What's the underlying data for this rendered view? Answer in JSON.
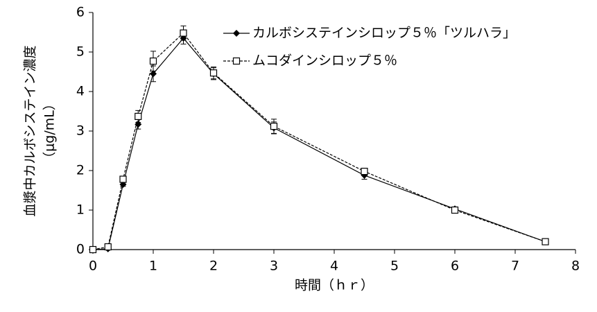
{
  "chart_data": {
    "type": "line",
    "y_label": [
      "血漿中カルボシステイン濃度",
      "（μg/mL）"
    ],
    "x_label": "時間（ｈｒ）",
    "x": [
      0,
      0.25,
      0.5,
      0.75,
      1,
      1.5,
      2,
      3,
      4.5,
      6,
      7.5
    ],
    "series": [
      {
        "name": "カルボシステインシロップ５％「ツルハラ」",
        "color": "#000000",
        "marker": "diamond",
        "dashed": false,
        "values": [
          0,
          0.02,
          1.65,
          3.17,
          4.45,
          5.35,
          4.45,
          3.08,
          1.88,
          1.03,
          0.2
        ],
        "errors": [
          0,
          0.02,
          0.05,
          0.12,
          0.2,
          0.15,
          0.15,
          0.15,
          0.1,
          0.05,
          0.02
        ]
      },
      {
        "name": "ムコダインシロップ５％",
        "color": "#000000",
        "marker": "square",
        "dashed": true,
        "values": [
          0,
          0.07,
          1.78,
          3.37,
          4.77,
          5.48,
          4.47,
          3.12,
          1.98,
          1.0,
          0.2
        ],
        "errors": [
          0,
          0.03,
          0.08,
          0.15,
          0.25,
          0.18,
          0.15,
          0.18,
          0.08,
          0.08,
          0.03
        ]
      }
    ],
    "xlim": [
      0,
      8
    ],
    "xticks": [
      0,
      1,
      2,
      3,
      4,
      5,
      6,
      7,
      8
    ],
    "ylim": [
      0,
      6
    ],
    "yticks": [
      0,
      1,
      2,
      3,
      4,
      5,
      6
    ],
    "grid": false,
    "legend": "top-right"
  }
}
